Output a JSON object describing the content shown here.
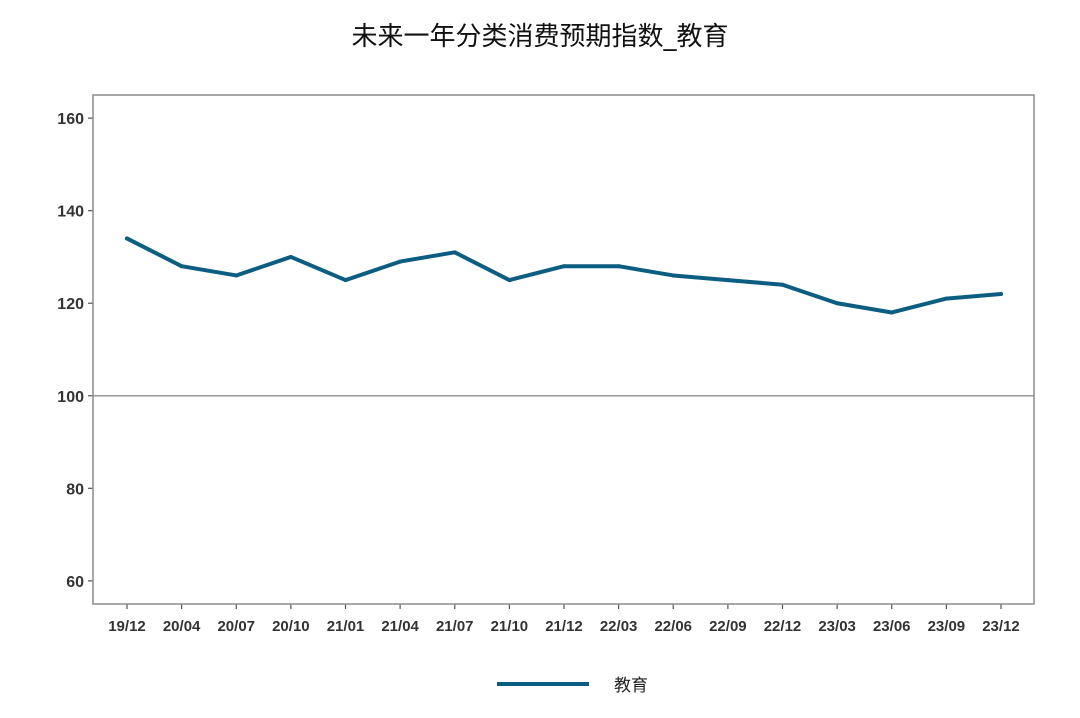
{
  "chart_data": {
    "type": "line",
    "title": "未来一年分类消费预期指数_教育",
    "categories": [
      "19/12",
      "20/04",
      "20/07",
      "20/10",
      "21/01",
      "21/04",
      "21/07",
      "21/10",
      "21/12",
      "22/03",
      "22/06",
      "22/09",
      "22/12",
      "23/03",
      "23/06",
      "23/09",
      "23/12"
    ],
    "series": [
      {
        "name": "教育",
        "values": [
          134,
          128,
          126,
          130,
          125,
          129,
          131,
          125,
          128,
          128,
          126,
          125,
          124,
          120,
          118,
          121,
          122
        ]
      }
    ],
    "ylim": [
      55,
      165
    ],
    "yticks": [
      60,
      80,
      100,
      120,
      140,
      160
    ],
    "reference_line": 100,
    "legend_position": "bottom",
    "colors": {
      "series": "#0b5e82",
      "frame": "#8c8c8c",
      "reference": "#9a9a9a"
    }
  }
}
